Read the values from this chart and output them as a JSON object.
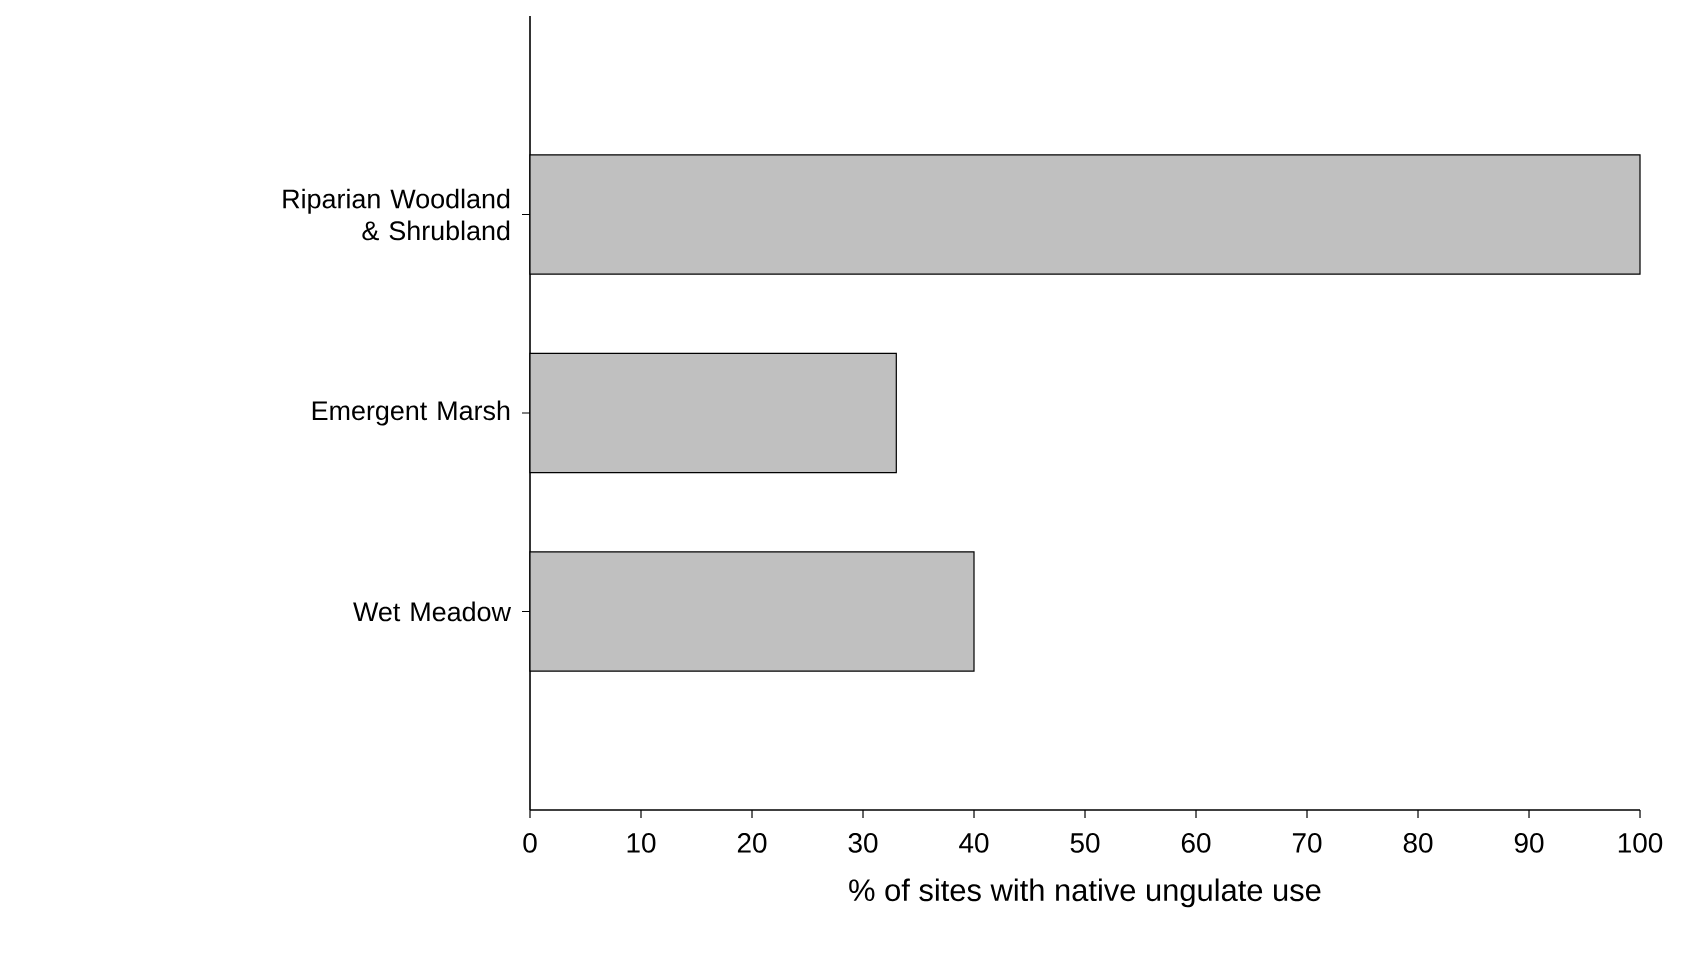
{
  "chart_data": {
    "type": "bar",
    "orientation": "horizontal",
    "categories": [
      "Riparian Woodland & Shrubland",
      "Emergent Marsh",
      "Wet Meadow"
    ],
    "values": [
      100,
      33,
      40
    ],
    "color": "#c0c0c0",
    "xlabel": "% of sites with native ungulate use",
    "xlim": [
      0,
      100
    ],
    "xticks": [
      0,
      10,
      20,
      30,
      40,
      50,
      60,
      70,
      80,
      90,
      100
    ],
    "grid": false
  }
}
